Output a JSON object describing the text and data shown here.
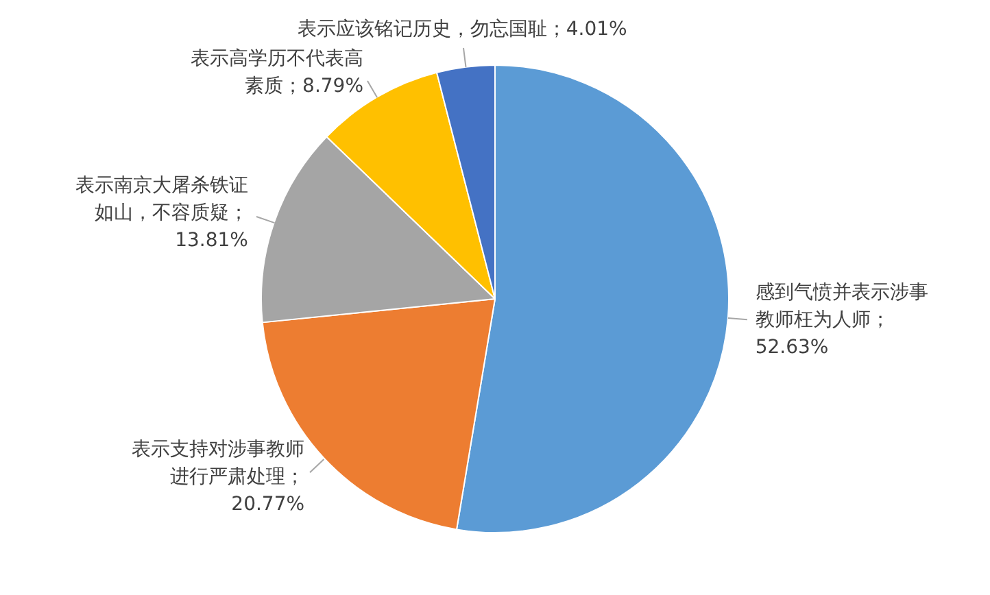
{
  "chart_data": {
    "type": "pie",
    "categories": [
      "感到气愤并表示涉事教师枉为人师",
      "表示支持对涉事教师进行严肃处理",
      "表示南京大屠杀铁证如山，不容质疑",
      "表示高学历不代表高素质",
      "表示应该铭记历史，勿忘国耻"
    ],
    "values": [
      52.63,
      20.77,
      13.81,
      8.79,
      4.01
    ],
    "value_labels": [
      "；52.63%",
      "；20.77%",
      "；13.81%",
      "；8.79%",
      "；4.01%"
    ],
    "colors": [
      "#5b9bd5",
      "#ed7d31",
      "#a5a5a5",
      "#ffc000",
      "#4472c4"
    ],
    "legend": false
  }
}
